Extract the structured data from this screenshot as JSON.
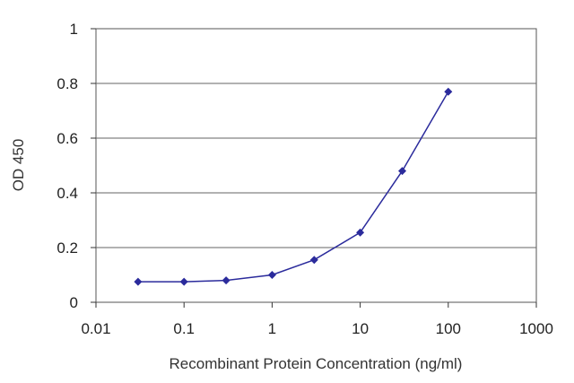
{
  "chart_data": {
    "type": "line",
    "xscale": "log",
    "xlim": [
      0.01,
      1000
    ],
    "ylim": [
      0,
      1
    ],
    "grid": "horizontal",
    "xlabel": "Recombinant Protein Concentration (ng/ml)",
    "ylabel": "OD 450",
    "x_ticks": [
      0.01,
      0.1,
      1,
      10,
      100,
      1000
    ],
    "x_tick_labels": [
      "0.01",
      "0.1",
      "1",
      "10",
      "100",
      "1000"
    ],
    "y_ticks": [
      0,
      0.2,
      0.4,
      0.6,
      0.8,
      1
    ],
    "y_tick_labels": [
      "0",
      "0.2",
      "0.4",
      "0.6",
      "0.8",
      "1"
    ],
    "series": [
      {
        "x": [
          0.03,
          0.1,
          0.3,
          1,
          3,
          10,
          30,
          100
        ],
        "y": [
          0.075,
          0.075,
          0.08,
          0.1,
          0.155,
          0.255,
          0.48,
          0.77
        ],
        "color": "#2b2b9c"
      }
    ]
  }
}
